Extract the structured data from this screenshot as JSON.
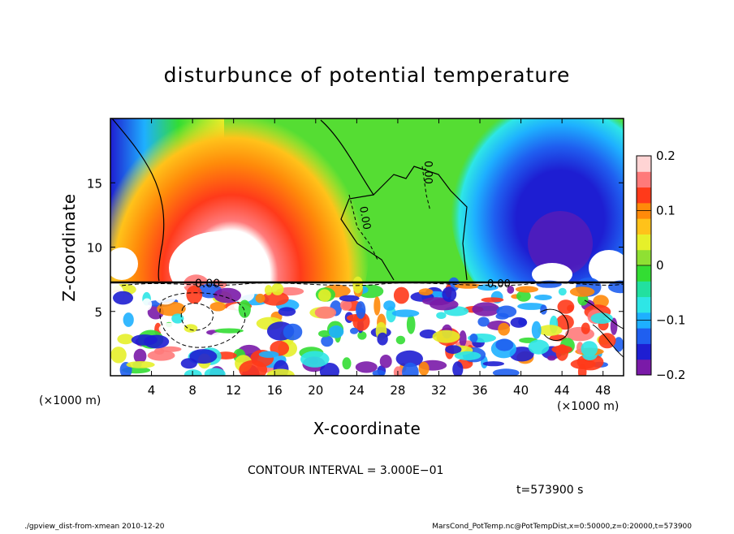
{
  "chart_data": {
    "type": "heatmap",
    "title": "disturbunce of potential temperature",
    "xlabel": "X-coordinate",
    "ylabel": "Z-coordinate",
    "x_unit": "(×1000 m)",
    "z_unit": "(×1000 m)",
    "xlim": [
      0,
      50
    ],
    "ylim": [
      0,
      20
    ],
    "x_ticks": [
      "4",
      "8",
      "12",
      "16",
      "20",
      "24",
      "28",
      "32",
      "36",
      "40",
      "44",
      "48"
    ],
    "y_ticks": [
      "5",
      "10",
      "15"
    ],
    "colorbar": {
      "range": [
        -0.2,
        0.2
      ],
      "ticks": [
        "0.2",
        "0.1",
        "0",
        "−0.1",
        "−0.2"
      ],
      "colors": [
        "#7a1aa8",
        "#1e1ed2",
        "#1f5ff0",
        "#1eb0ff",
        "#2ee6e6",
        "#22e0a0",
        "#33dd33",
        "#8fe033",
        "#e6f02a",
        "#ffc21a",
        "#ff8a0a",
        "#ff3a1a",
        "#ff7a7a",
        "#ffd4d4"
      ]
    },
    "contour_labels": [
      "0.00",
      "0.00",
      "0.00",
      "0.00"
    ],
    "contour_interval": "CONTOUR INTERVAL = 3.000E−01",
    "time": "t=573900 s"
  },
  "footer": {
    "left": "./gpview_dist-from-xmean  2010-12-20",
    "right": "MarsCond_PotTemp.nc@PotTempDist,x=0:50000,z=0:20000,t=573900"
  }
}
